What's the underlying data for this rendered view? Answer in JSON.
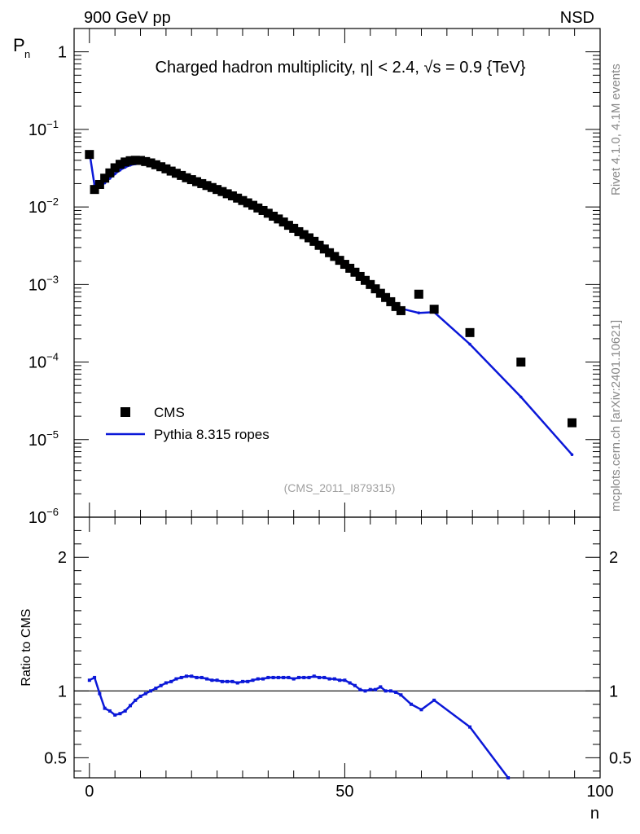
{
  "header": {
    "left": "900 GeV pp",
    "right": "NSD",
    "title": "Charged hadron multiplicity, η| < 2.4, √s = 0.9 {TeV}"
  },
  "side_text": {
    "rivet": "Rivet 4.1.0,  4.1M events",
    "source": "mcplots.cern.ch [arXiv:2401.10621]"
  },
  "analysis_label": "(CMS_2011_I879315)",
  "legend": {
    "cms": "CMS",
    "pythia": "Pythia 8.315 ropes"
  },
  "colors": {
    "data": "#000000",
    "mc": "#0b18d8",
    "ref_line": "#000000"
  },
  "chart_data": [
    {
      "type": "scatter",
      "panel": "main",
      "ylabel": "P",
      "ylabel_sub": "n",
      "yscale": "log",
      "ylim": [
        1e-06,
        2
      ],
      "xlim": [
        -3,
        100
      ],
      "y_ticks": [
        {
          "value": 1,
          "base": "1",
          "exp": ""
        },
        {
          "value": 0.1,
          "base": "10",
          "exp": "−1"
        },
        {
          "value": 0.01,
          "base": "10",
          "exp": "−2"
        },
        {
          "value": 0.001,
          "base": "10",
          "exp": "−3"
        },
        {
          "value": 0.0001,
          "base": "10",
          "exp": "−4"
        },
        {
          "value": 1e-05,
          "base": "10",
          "exp": "−5"
        },
        {
          "value": 1e-06,
          "base": "10",
          "exp": "−6"
        }
      ],
      "series": [
        {
          "name": "CMS",
          "x": [
            0,
            1,
            2,
            3,
            4,
            5,
            6,
            7,
            8,
            9,
            10,
            11,
            12,
            13,
            14,
            15,
            16,
            17,
            18,
            19,
            20,
            21,
            22,
            23,
            24,
            25,
            26,
            27,
            28,
            29,
            30,
            31,
            32,
            33,
            34,
            35,
            36,
            37,
            38,
            39,
            40,
            41,
            42,
            43,
            44,
            45,
            46,
            47,
            48,
            49,
            50,
            51,
            52,
            53,
            54,
            55,
            56,
            57,
            58,
            59,
            60,
            61,
            64.5,
            67.5,
            74.5,
            84.5,
            94.5
          ],
          "y": [
            0.0475,
            0.0168,
            0.0195,
            0.0235,
            0.0275,
            0.032,
            0.0355,
            0.038,
            0.0395,
            0.04,
            0.0398,
            0.0385,
            0.037,
            0.035,
            0.033,
            0.031,
            0.029,
            0.0272,
            0.0255,
            0.0238,
            0.0225,
            0.0212,
            0.02,
            0.0189,
            0.0178,
            0.0168,
            0.0158,
            0.0148,
            0.0139,
            0.013,
            0.0121,
            0.0113,
            0.0105,
            0.0097,
            0.009,
            0.0083,
            0.0076,
            0.007,
            0.0064,
            0.0058,
            0.0053,
            0.0048,
            0.0044,
            0.004,
            0.0036,
            0.0032,
            0.00287,
            0.00257,
            0.0023,
            0.00205,
            0.00182,
            0.00162,
            0.00144,
            0.00127,
            0.00113,
            0.001,
            0.00088,
            0.00077,
            0.00068,
            0.0006,
            0.00052,
            0.00046,
            0.00075,
            0.00048,
            0.00024,
            0.0001,
            1.65e-05
          ]
        },
        {
          "name": "Pythia 8.315 ropes",
          "x": [
            0,
            1,
            2,
            3,
            4,
            5,
            6,
            7,
            8,
            9,
            10,
            11,
            12,
            13,
            14,
            15,
            16,
            17,
            18,
            19,
            20,
            21,
            22,
            23,
            24,
            25,
            26,
            27,
            28,
            29,
            30,
            31,
            32,
            33,
            34,
            35,
            36,
            37,
            38,
            39,
            40,
            41,
            42,
            43,
            44,
            45,
            46,
            47,
            48,
            49,
            50,
            51,
            52,
            53,
            54,
            55,
            56,
            57,
            58,
            59,
            60,
            61,
            64.5,
            67.5,
            74.5,
            84.5,
            94.5
          ],
          "y": [
            0.0513,
            0.019,
            0.0183,
            0.0204,
            0.0234,
            0.0267,
            0.0299,
            0.0325,
            0.0346,
            0.0359,
            0.0364,
            0.0362,
            0.0355,
            0.0343,
            0.0327,
            0.031,
            0.0293,
            0.0276,
            0.026,
            0.0244,
            0.023,
            0.0216,
            0.0203,
            0.0191,
            0.018,
            0.0169,
            0.0159,
            0.0149,
            0.0139,
            0.013,
            0.0122,
            0.0115,
            0.0108,
            0.0101,
            0.0094,
            0.0087,
            0.008,
            0.0074,
            0.0068,
            0.0062,
            0.0057,
            0.0052,
            0.0047,
            0.0043,
            0.0039,
            0.0035,
            0.00314,
            0.00281,
            0.00251,
            0.00223,
            0.00198,
            0.00175,
            0.00155,
            0.00137,
            0.00121,
            0.00107,
            0.00094,
            0.00083,
            0.00073,
            0.00064,
            0.00056,
            0.00049,
            0.00043,
            0.00044,
            0.00017,
            3.55e-05,
            6.4e-06
          ]
        }
      ]
    },
    {
      "type": "line",
      "panel": "ratio",
      "ylabel": "Ratio to CMS",
      "xlabel": "n",
      "ylim": [
        0.35,
        2.3
      ],
      "xlim": [
        -3,
        100
      ],
      "reference_line": 1,
      "y_ticks": [
        0.5,
        1,
        2
      ],
      "x_ticks": [
        0,
        50,
        100
      ],
      "series": [
        {
          "name": "Pythia 8.315 ropes / CMS",
          "x": [
            0,
            1,
            2,
            3,
            4,
            5,
            6,
            7,
            8,
            9,
            10,
            11,
            12,
            13,
            14,
            15,
            16,
            17,
            18,
            19,
            20,
            21,
            22,
            23,
            24,
            25,
            26,
            27,
            28,
            29,
            30,
            31,
            32,
            33,
            34,
            35,
            36,
            37,
            38,
            39,
            40,
            41,
            42,
            43,
            44,
            45,
            46,
            47,
            48,
            49,
            50,
            51,
            52,
            53,
            54,
            55,
            56,
            57,
            58,
            59,
            60,
            61,
            63,
            65,
            67.5,
            74.5,
            82
          ],
          "y": [
            1.08,
            1.1,
            0.98,
            0.87,
            0.85,
            0.82,
            0.83,
            0.85,
            0.89,
            0.93,
            0.96,
            0.98,
            1.0,
            1.02,
            1.04,
            1.06,
            1.07,
            1.09,
            1.1,
            1.11,
            1.11,
            1.1,
            1.1,
            1.09,
            1.08,
            1.08,
            1.07,
            1.07,
            1.07,
            1.06,
            1.07,
            1.07,
            1.08,
            1.09,
            1.09,
            1.1,
            1.1,
            1.1,
            1.1,
            1.1,
            1.09,
            1.1,
            1.1,
            1.1,
            1.11,
            1.1,
            1.1,
            1.09,
            1.09,
            1.08,
            1.08,
            1.06,
            1.04,
            1.01,
            1.0,
            1.01,
            1.01,
            1.03,
            1.0,
            1.0,
            0.99,
            0.97,
            0.9,
            0.86,
            0.93,
            0.73,
            0.35
          ]
        }
      ]
    }
  ]
}
